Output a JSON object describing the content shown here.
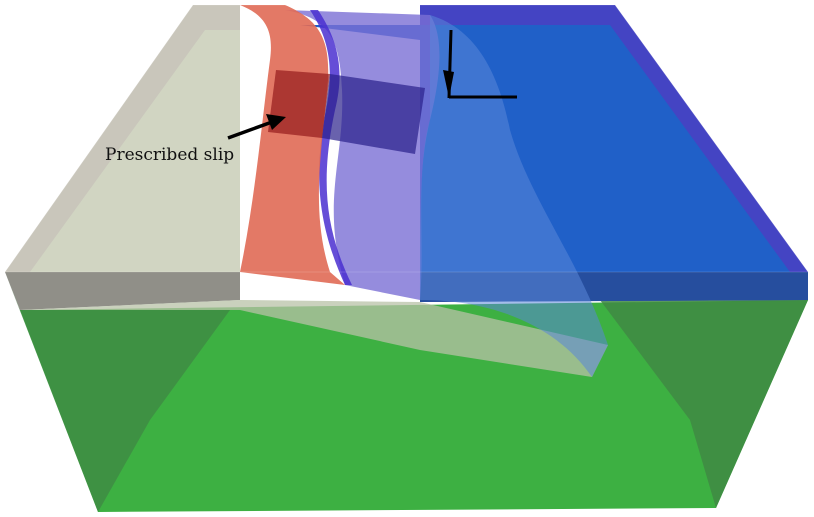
{
  "annotation": {
    "text": "Prescribed slip"
  },
  "colors": {
    "background": "#ffffff",
    "mantle": "#3db042",
    "mantle_side": "#3f8a43",
    "crust_left": "#cfcfc2",
    "crust_left_edge": "#b9b6ad",
    "fault_slip_zone": "#e06a55",
    "fault_patch": "#b03030",
    "slab_blue": "#6c6cd0",
    "ocean_blue": "#2060c8",
    "ocean_edge": "#3a3ac0",
    "arrow": "#000000"
  }
}
